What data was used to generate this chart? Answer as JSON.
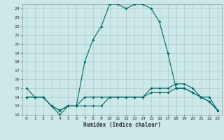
{
  "xlabel": "Humidex (Indice chaleur)",
  "x_hours": [
    0,
    1,
    2,
    3,
    4,
    5,
    6,
    7,
    8,
    9,
    10,
    11,
    12,
    13,
    14,
    15,
    16,
    17,
    18,
    19,
    20,
    21,
    22,
    23
  ],
  "line1": [
    15,
    14,
    14,
    13,
    12,
    13,
    13,
    18,
    20.5,
    22,
    24.5,
    24.5,
    24,
    24.5,
    24.5,
    24,
    22.5,
    19,
    15,
    15,
    14.5,
    14,
    13.5,
    12.5
  ],
  "line2": [
    14,
    14,
    14,
    13,
    12.5,
    13,
    13,
    14,
    14,
    14,
    14,
    14,
    14,
    14,
    14,
    14.5,
    14.5,
    14.5,
    15,
    15,
    14.5,
    14,
    14,
    12.5
  ],
  "line3": [
    14,
    14,
    14,
    13,
    12.5,
    13,
    13,
    13,
    13,
    13,
    14,
    14,
    14,
    14,
    14,
    15,
    15,
    15,
    15.5,
    15.5,
    15,
    14,
    13.5,
    12.5
  ],
  "bg_color": "#cce8e8",
  "grid_color": "#aacccc",
  "line_color": "#006868",
  "ylim": [
    12,
    24
  ],
  "xlim": [
    -0.5,
    23.5
  ]
}
